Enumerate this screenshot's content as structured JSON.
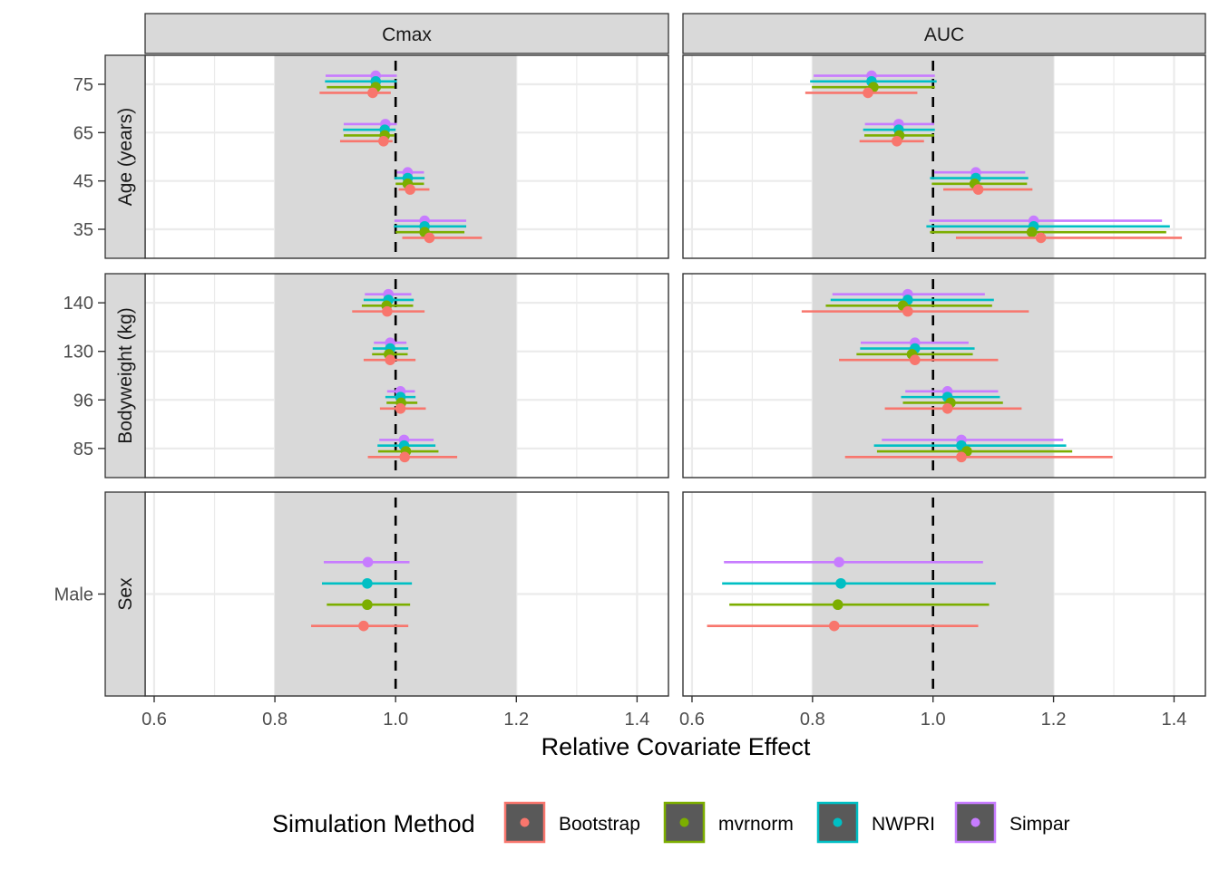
{
  "chart_data": {
    "type": "forest",
    "xlabel": "Relative Covariate Effect",
    "xlim": [
      0.585,
      1.452
    ],
    "x_ticks": [
      0.6,
      0.8,
      1.0,
      1.2,
      1.4
    ],
    "x_tick_labels": [
      "0.6",
      "0.8",
      "1.0",
      "1.2",
      "1.4"
    ],
    "x_minor_ticks": [
      0.7,
      0.9,
      1.1,
      1.3
    ],
    "reference_line": 1.0,
    "reference_band": [
      0.8,
      1.2
    ],
    "grid": true,
    "facet_columns": [
      "Cmax",
      "AUC"
    ],
    "facet_rows": [
      {
        "label": "Age (years)",
        "categories": [
          "75",
          "65",
          "45",
          "35"
        ]
      },
      {
        "label": "Bodyweight (kg)",
        "categories": [
          "140",
          "130",
          "96",
          "85"
        ]
      },
      {
        "label": "Sex",
        "categories": [
          "Male"
        ]
      }
    ],
    "legend": {
      "title": "Simulation Method",
      "position": "bottom",
      "entries": [
        {
          "name": "Bootstrap",
          "color": "#F8766D"
        },
        {
          "name": "mvrnorm",
          "color": "#7CAE00"
        },
        {
          "name": "NWPRI",
          "color": "#00BFC4"
        },
        {
          "name": "Simpar",
          "color": "#C77CFF"
        }
      ]
    },
    "methods_order_top_to_bottom": [
      "Simpar",
      "NWPRI",
      "mvrnorm",
      "Bootstrap"
    ],
    "data": {
      "Cmax": {
        "Age (years)": {
          "75": {
            "Simpar": [
              0.884,
              0.967,
              1.002
            ],
            "NWPRI": [
              0.883,
              0.967,
              1.002
            ],
            "mvrnorm": [
              0.886,
              0.967,
              0.998
            ],
            "Bootstrap": [
              0.874,
              0.962,
              0.992
            ]
          },
          "65": {
            "Simpar": [
              0.914,
              0.983,
              1.002
            ],
            "NWPRI": [
              0.913,
              0.982,
              1.0
            ],
            "mvrnorm": [
              0.914,
              0.982,
              0.998
            ],
            "Bootstrap": [
              0.908,
              0.98,
              0.995
            ]
          },
          "45": {
            "Simpar": [
              1.002,
              1.02,
              1.047
            ],
            "NWPRI": [
              0.998,
              1.02,
              1.048
            ],
            "mvrnorm": [
              1.0,
              1.02,
              1.047
            ],
            "Bootstrap": [
              1.005,
              1.024,
              1.056
            ]
          },
          "35": {
            "Simpar": [
              0.998,
              1.048,
              1.117
            ],
            "NWPRI": [
              0.997,
              1.048,
              1.117
            ],
            "mvrnorm": [
              1.0,
              1.048,
              1.114
            ],
            "Bootstrap": [
              1.011,
              1.056,
              1.143
            ]
          }
        },
        "Bodyweight (kg)": {
          "140": {
            "Simpar": [
              0.949,
              0.988,
              1.026
            ],
            "NWPRI": [
              0.947,
              0.988,
              1.03
            ],
            "mvrnorm": [
              0.944,
              0.985,
              1.029
            ],
            "Bootstrap": [
              0.928,
              0.986,
              1.048
            ]
          },
          "130": {
            "Simpar": [
              0.964,
              0.991,
              1.018
            ],
            "NWPRI": [
              0.962,
              0.991,
              1.021
            ],
            "mvrnorm": [
              0.961,
              0.989,
              1.02
            ],
            "Bootstrap": [
              0.947,
              0.991,
              1.033
            ]
          },
          "96": {
            "Simpar": [
              0.986,
              1.008,
              1.032
            ],
            "NWPRI": [
              0.983,
              1.008,
              1.033
            ],
            "mvrnorm": [
              0.985,
              1.009,
              1.036
            ],
            "Bootstrap": [
              0.974,
              1.008,
              1.05
            ]
          },
          "85": {
            "Simpar": [
              0.973,
              1.014,
              1.063
            ],
            "NWPRI": [
              0.97,
              1.014,
              1.066
            ],
            "mvrnorm": [
              0.971,
              1.017,
              1.071
            ],
            "Bootstrap": [
              0.954,
              1.015,
              1.102
            ]
          }
        },
        "Sex": {
          "Male": {
            "Simpar": [
              0.881,
              0.954,
              1.023
            ],
            "NWPRI": [
              0.878,
              0.953,
              1.027
            ],
            "mvrnorm": [
              0.886,
              0.953,
              1.024
            ],
            "Bootstrap": [
              0.86,
              0.947,
              1.021
            ]
          }
        }
      },
      "AUC": {
        "Age (years)": {
          "75": {
            "Simpar": [
              0.802,
              0.898,
              1.003
            ],
            "NWPRI": [
              0.796,
              0.898,
              1.006
            ],
            "mvrnorm": [
              0.799,
              0.901,
              1.003
            ],
            "Bootstrap": [
              0.788,
              0.892,
              0.974
            ]
          },
          "65": {
            "Simpar": [
              0.887,
              0.943,
              1.002
            ],
            "NWPRI": [
              0.884,
              0.943,
              1.003
            ],
            "mvrnorm": [
              0.886,
              0.944,
              1.002
            ],
            "Bootstrap": [
              0.878,
              0.94,
              0.985
            ]
          },
          "45": {
            "Simpar": [
              1.002,
              1.071,
              1.153
            ],
            "NWPRI": [
              0.995,
              1.071,
              1.158
            ],
            "mvrnorm": [
              0.998,
              1.069,
              1.156
            ],
            "Bootstrap": [
              1.017,
              1.075,
              1.165
            ]
          },
          "35": {
            "Simpar": [
              0.994,
              1.167,
              1.38
            ],
            "NWPRI": [
              0.989,
              1.167,
              1.393
            ],
            "mvrnorm": [
              0.995,
              1.164,
              1.387
            ],
            "Bootstrap": [
              1.038,
              1.179,
              1.413
            ]
          }
        },
        "Bodyweight (kg)": {
          "140": {
            "Simpar": [
              0.833,
              0.958,
              1.086
            ],
            "NWPRI": [
              0.83,
              0.958,
              1.101
            ],
            "mvrnorm": [
              0.822,
              0.95,
              1.098
            ],
            "Bootstrap": [
              0.782,
              0.958,
              1.159
            ]
          },
          "130": {
            "Simpar": [
              0.88,
              0.97,
              1.059
            ],
            "NWPRI": [
              0.879,
              0.97,
              1.069
            ],
            "mvrnorm": [
              0.873,
              0.965,
              1.066
            ],
            "Bootstrap": [
              0.844,
              0.97,
              1.108
            ]
          },
          "96": {
            "Simpar": [
              0.954,
              1.024,
              1.108
            ],
            "NWPRI": [
              0.947,
              1.024,
              1.111
            ],
            "mvrnorm": [
              0.95,
              1.029,
              1.116
            ],
            "Bootstrap": [
              0.92,
              1.024,
              1.147
            ]
          },
          "85": {
            "Simpar": [
              0.915,
              1.047,
              1.216
            ],
            "NWPRI": [
              0.902,
              1.047,
              1.221
            ],
            "mvrnorm": [
              0.907,
              1.056,
              1.231
            ],
            "Bootstrap": [
              0.854,
              1.047,
              1.298
            ]
          }
        },
        "Sex": {
          "Male": {
            "Simpar": [
              0.653,
              0.844,
              1.083
            ],
            "NWPRI": [
              0.65,
              0.847,
              1.104
            ],
            "mvrnorm": [
              0.662,
              0.842,
              1.093
            ],
            "Bootstrap": [
              0.625,
              0.836,
              1.075
            ]
          }
        }
      }
    }
  }
}
